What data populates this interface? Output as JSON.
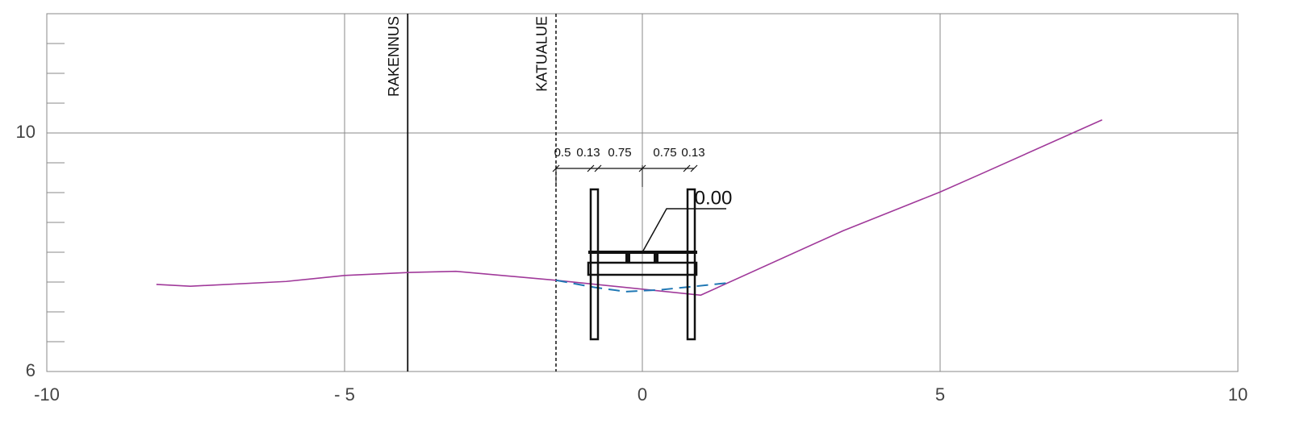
{
  "chart_data": {
    "type": "line",
    "xlim": [
      -10,
      10
    ],
    "xticks": [
      -10,
      {
        "value": -5,
        "label": "- 5"
      },
      0,
      5,
      10
    ],
    "ylim": [
      6,
      12
    ],
    "yticks": [
      6,
      10
    ],
    "y_minor_ticks": [
      6.5,
      7,
      7.5,
      8,
      8.5,
      9,
      9.5,
      10.5,
      11,
      11.5,
      12
    ],
    "grid": true,
    "series": [
      {
        "color": "#a0399a",
        "dashed": false,
        "x": [
          -8.16,
          -7.59,
          -5.98,
          -5.0,
          -3.94,
          -3.13,
          -1.45,
          0.98,
          3.37,
          5.0,
          5.68,
          7.72
        ],
        "values": [
          7.46,
          7.43,
          7.51,
          7.61,
          7.66,
          7.68,
          7.53,
          7.28,
          8.36,
          9.01,
          9.31,
          10.22
        ]
      },
      {
        "color": "#1f77b4",
        "dashed": true,
        "x": [
          -1.45,
          -0.8,
          -0.28,
          0.3,
          0.9,
          1.48
        ],
        "values": [
          7.53,
          7.41,
          7.34,
          7.37,
          7.43,
          7.49
        ]
      }
    ],
    "reference_lines": [
      {
        "x": -3.94,
        "label": "RAKENNUS",
        "dashed": false
      },
      {
        "x": -1.45,
        "label": "KATUALUE",
        "dashed": true
      }
    ],
    "dimension_labels": [
      "0.5",
      "0.13",
      "0.75",
      "0.75",
      "0.13"
    ],
    "level_label": "0.00"
  }
}
